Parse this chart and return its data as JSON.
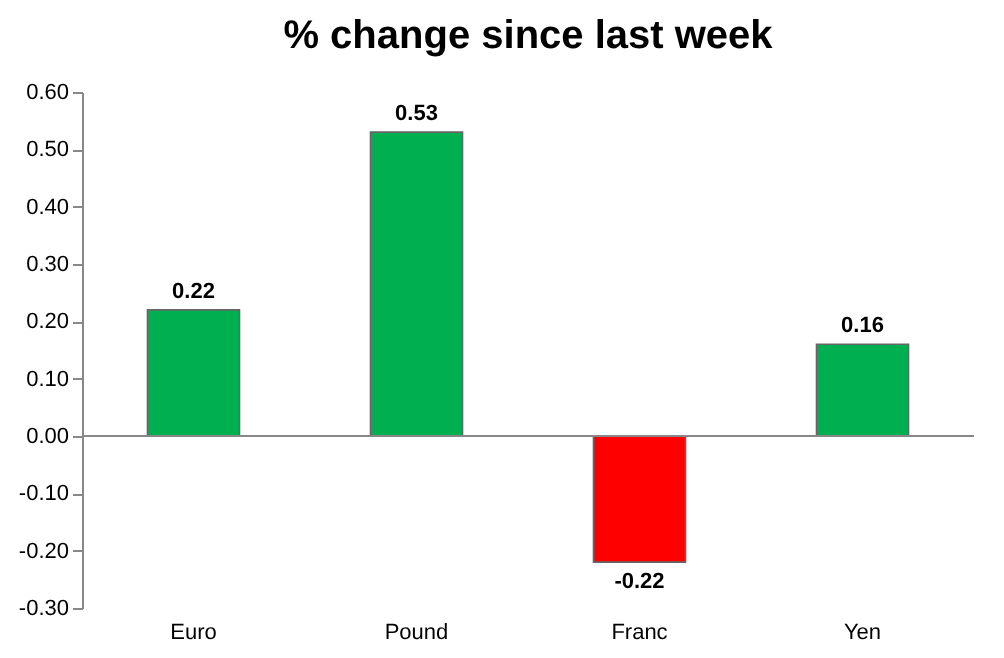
{
  "chart_data": {
    "type": "bar",
    "title": "% change since last week",
    "categories": [
      "Euro",
      "Pound",
      "Franc",
      "Yen"
    ],
    "values": [
      0.22,
      0.53,
      -0.22,
      0.16
    ],
    "colors": [
      "#00b050",
      "#00b050",
      "#ff0000",
      "#00b050"
    ],
    "ylim": [
      -0.3,
      0.6
    ],
    "yticks": [
      {
        "value": -0.3,
        "label": "-0.30"
      },
      {
        "value": -0.2,
        "label": "-0.20"
      },
      {
        "value": -0.1,
        "label": "-0.10"
      },
      {
        "value": 0,
        "label": "0.00"
      },
      {
        "value": 0.1,
        "label": "0.10"
      },
      {
        "value": 0.2,
        "label": "0.20"
      },
      {
        "value": 0.3,
        "label": "0.30"
      },
      {
        "value": 0.4,
        "label": "0.40"
      },
      {
        "value": 0.5,
        "label": "0.50"
      },
      {
        "value": 0.6,
        "label": "0.60"
      }
    ],
    "data_labels": true
  }
}
